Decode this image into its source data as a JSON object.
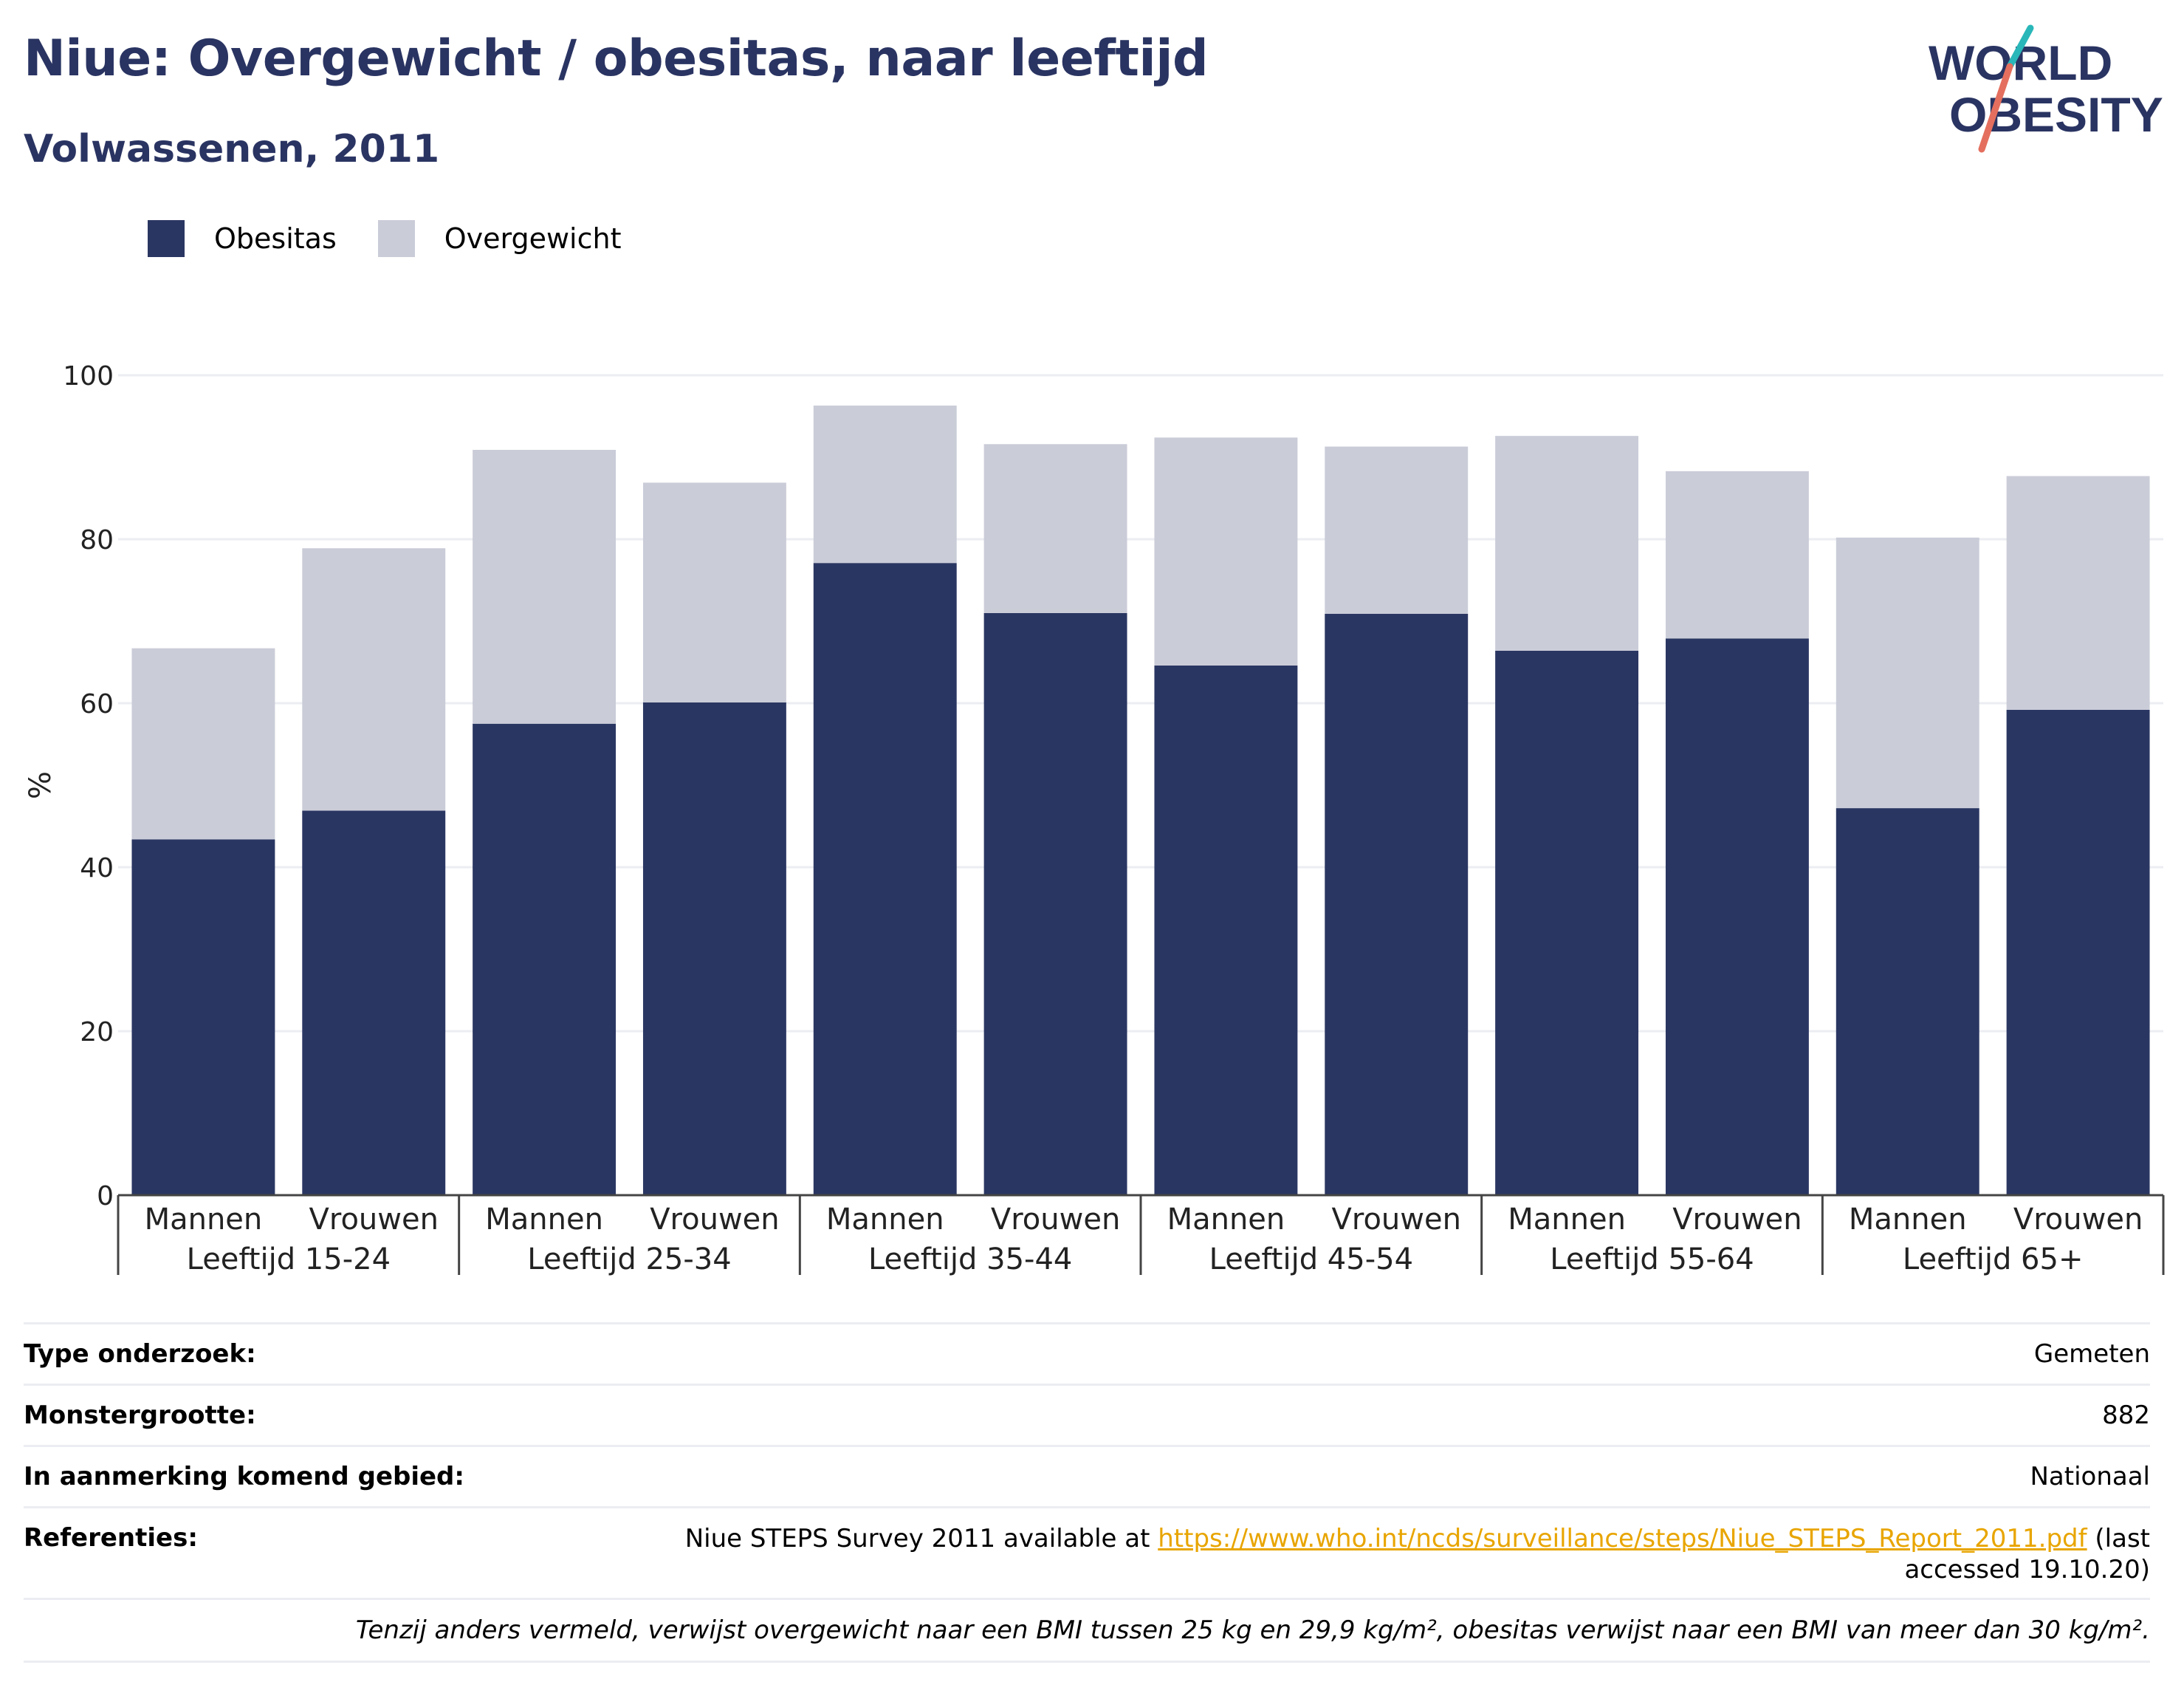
{
  "title": "Niue: Overgewicht / obesitas, naar leeftijd",
  "subtitle": "Volwassenen, 2011",
  "logo": {
    "line1": "WORLD",
    "line2": "OBESITY"
  },
  "colors": {
    "obesitas": "#2a3662",
    "overgewicht": "#caccd8",
    "title": "#2a3462",
    "link": "#e8a500",
    "grid": "#ebedf2"
  },
  "chart_data": {
    "type": "bar",
    "stacked": true,
    "ylabel": "%",
    "ylim": [
      0,
      100
    ],
    "yticks": [
      0,
      20,
      40,
      60,
      80,
      100
    ],
    "grid": true,
    "legend_position": "top-left",
    "groups": [
      "Leeftijd 15-24",
      "Leeftijd 25-34",
      "Leeftijd 35-44",
      "Leeftijd 45-54",
      "Leeftijd 55-64",
      "Leeftijd 65+"
    ],
    "subcategories": [
      "Mannen",
      "Vrouwen"
    ],
    "series": [
      {
        "name": "Obesitas",
        "values": [
          43.4,
          46.9,
          57.5,
          60.1,
          77.1,
          71.0,
          64.6,
          70.9,
          66.4,
          67.9,
          47.2,
          59.2
        ]
      },
      {
        "name": "Overgewicht",
        "values": [
          23.3,
          32.0,
          33.4,
          26.8,
          19.2,
          20.6,
          27.8,
          20.4,
          26.2,
          20.4,
          33.0,
          28.5
        ]
      }
    ]
  },
  "info": {
    "type_label": "Type onderzoek:",
    "type_value": "Gemeten",
    "sample_label": "Monstergrootte:",
    "sample_value": "882",
    "area_label": "In aanmerking komend gebied:",
    "area_value": "Nationaal",
    "ref_label": "Referenties:",
    "ref_prefix": "Niue STEPS Survey 2011 available at ",
    "ref_link": "https://www.who.int/ncds/surveillance/steps/Niue_STEPS_Report_2011.pdf",
    "ref_suffix": " (last accessed 19.10.20)",
    "note": "Tenzij anders vermeld, verwijst overgewicht naar een BMI tussen 25 kg en 29,9 kg/m², obesitas verwijst naar een BMI van meer dan 30 kg/m²."
  }
}
